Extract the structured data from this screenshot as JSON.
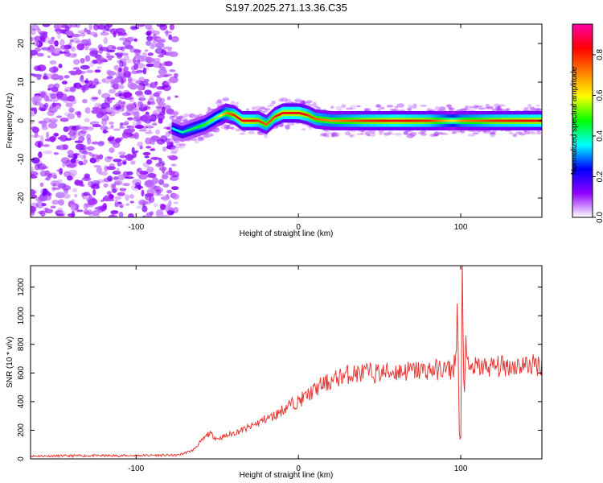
{
  "title": "S197.2025.271.13.36.C35",
  "colors": {
    "line": "#e53935",
    "axis": "#000000",
    "background": "#ffffff"
  },
  "chart_data": [
    {
      "type": "heatmap",
      "xlabel": "Height of straight line (km)",
      "ylabel": "Frequency (Hz)",
      "xlim": [
        -165,
        150
      ],
      "ylim": [
        -25,
        25
      ],
      "x_ticks": [
        -100,
        0,
        100
      ],
      "y_ticks": [
        -20,
        -10,
        0,
        10,
        20
      ],
      "grid": false,
      "colorbar": {
        "label": "Normalized spectral amplitude",
        "range": [
          0.0,
          0.95
        ],
        "ticks": [
          0.0,
          0.2,
          0.4,
          0.6,
          0.8
        ],
        "colormap": [
          "#ffffff",
          "#8f00ff",
          "#0000ff",
          "#00ffff",
          "#00ff00",
          "#ffff00",
          "#ff7f00",
          "#ff0000",
          "#ff00aa"
        ]
      },
      "ridge": {
        "x": [
          -78,
          -72,
          -65,
          -58,
          -50,
          -45,
          -40,
          -35,
          -30,
          -25,
          -20,
          -15,
          -10,
          -5,
          0,
          5,
          10,
          20,
          30,
          40,
          60,
          80,
          95,
          100,
          120,
          150
        ],
        "frequency": [
          -2,
          -3,
          -2,
          -1,
          1,
          2,
          1.5,
          0,
          0,
          0,
          -1,
          1,
          2,
          2,
          2,
          1.5,
          0.5,
          0,
          0,
          0,
          0,
          0,
          0,
          0,
          0,
          0
        ],
        "amplitude": [
          0.35,
          0.4,
          0.45,
          0.5,
          0.55,
          0.7,
          0.8,
          0.85,
          0.85,
          0.8,
          0.75,
          0.8,
          0.85,
          0.85,
          0.85,
          0.8,
          0.75,
          0.7,
          0.75,
          0.8,
          0.85,
          0.8,
          0.6,
          0.7,
          0.8,
          0.85
        ]
      },
      "noise_region": {
        "x_range": [
          -165,
          -75
        ],
        "amplitude_range": [
          0.05,
          0.2
        ]
      }
    },
    {
      "type": "line",
      "xlabel": "Height of straight line (km)",
      "ylabel": "SNR (10 * v/v)",
      "xlim": [
        -165,
        150
      ],
      "ylim": [
        0,
        1350
      ],
      "x_ticks": [
        -100,
        0,
        100
      ],
      "y_ticks": [
        0,
        200,
        400,
        600,
        800,
        1000,
        1200
      ],
      "grid": false,
      "series": [
        {
          "x": [
            -165,
            -150,
            -130,
            -110,
            -90,
            -75,
            -70,
            -65,
            -60,
            -55,
            -50,
            -45,
            -40,
            -35,
            -30,
            -25,
            -20,
            -15,
            -10,
            -5,
            0,
            5,
            10,
            15,
            20,
            25,
            30,
            40,
            50,
            60,
            70,
            80,
            90,
            95,
            97,
            98,
            99,
            100,
            101,
            102,
            103,
            104,
            105,
            110,
            120,
            130,
            140,
            150
          ],
          "values": [
            20,
            20,
            22,
            22,
            25,
            25,
            40,
            60,
            120,
            180,
            140,
            160,
            180,
            200,
            220,
            250,
            280,
            300,
            340,
            380,
            400,
            440,
            480,
            520,
            540,
            570,
            590,
            600,
            600,
            610,
            615,
            620,
            625,
            620,
            700,
            1150,
            200,
            80,
            1350,
            400,
            800,
            650,
            630,
            640,
            645,
            650,
            655,
            660
          ]
        }
      ]
    }
  ]
}
